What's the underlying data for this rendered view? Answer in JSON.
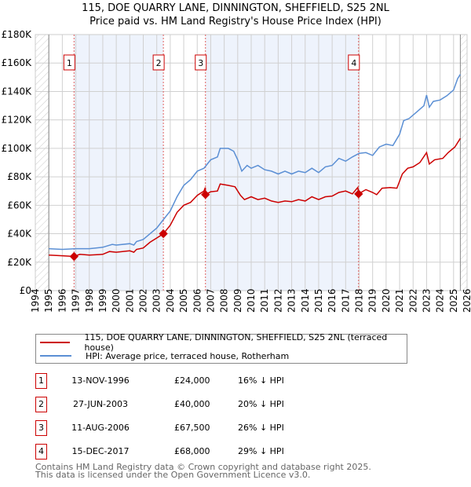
{
  "title": "115, DOE QUARRY LANE, DINNINGTON, SHEFFIELD, S25 2NL",
  "subtitle": "Price paid vs. HM Land Registry's House Price Index (HPI)",
  "colors": {
    "property": "#cc0000",
    "hpi": "#5b8fd4",
    "shade": "#eef3fc",
    "marker_border": "#cc0000"
  },
  "chart_data": {
    "type": "line",
    "title": "115, DOE QUARRY LANE, DINNINGTON, SHEFFIELD, S25 2NL — Price paid vs. HM Land Registry's House Price Index (HPI)",
    "xlim": [
      1994,
      2026
    ],
    "ylim": [
      0,
      180000
    ],
    "x_ticks": [
      "1994",
      "1995",
      "1996",
      "1997",
      "1998",
      "1999",
      "2000",
      "2001",
      "2002",
      "2003",
      "2004",
      "2005",
      "2006",
      "2007",
      "2008",
      "2009",
      "2010",
      "2011",
      "2012",
      "2013",
      "2014",
      "2015",
      "2016",
      "2017",
      "2018",
      "2019",
      "2020",
      "2021",
      "2022",
      "2023",
      "2024",
      "2025",
      "2026"
    ],
    "y_ticks": [
      {
        "v": 0,
        "label": "£0"
      },
      {
        "v": 20000,
        "label": "£20K"
      },
      {
        "v": 40000,
        "label": "£40K"
      },
      {
        "v": 60000,
        "label": "£60K"
      },
      {
        "v": 80000,
        "label": "£80K"
      },
      {
        "v": 100000,
        "label": "£100K"
      },
      {
        "v": 120000,
        "label": "£120K"
      },
      {
        "v": 140000,
        "label": "£140K"
      },
      {
        "v": 160000,
        "label": "£160K"
      },
      {
        "v": 180000,
        "label": "£180K"
      }
    ],
    "grid": true,
    "data_range": [
      1995,
      2025.5
    ],
    "series": [
      {
        "name": "115, DOE QUARRY LANE, DINNINGTON, SHEFFIELD, S25 2NL (terraced house)",
        "color": "#cc0000",
        "x": [
          1995,
          1996,
          1996.87,
          1997.3,
          1998,
          1999,
          1999.5,
          2000,
          2001,
          2001.3,
          2001.5,
          2002,
          2002.5,
          2003,
          2003.49,
          2004,
          2004.5,
          2005,
          2005.5,
          2006,
          2006.5,
          2006.6,
          2006.61,
          2007,
          2007.5,
          2007.7,
          2008.3,
          2008.8,
          2009.2,
          2009.5,
          2010,
          2010.5,
          2011,
          2011.5,
          2012,
          2012.5,
          2013,
          2013.5,
          2014,
          2014.5,
          2015,
          2015.5,
          2016,
          2016.5,
          2017,
          2017.5,
          2017.9,
          2017.96,
          2018.5,
          2019,
          2019.3,
          2019.7,
          2020.3,
          2020.8,
          2021.2,
          2021.6,
          2022,
          2022.5,
          2023,
          2023.2,
          2023.6,
          2024.2,
          2024.6,
          2025.1,
          2025.5
        ],
        "y": [
          25000,
          24500,
          24000,
          25500,
          25000,
          25500,
          27500,
          27000,
          28000,
          27000,
          29000,
          30000,
          34000,
          37000,
          40000,
          46000,
          55000,
          60000,
          62000,
          67000,
          70000,
          72500,
          67500,
          69500,
          70000,
          75000,
          74000,
          73000,
          67000,
          64000,
          66000,
          64000,
          65000,
          63000,
          62000,
          63000,
          62500,
          64000,
          63000,
          66000,
          64000,
          66000,
          66500,
          69000,
          70000,
          68000,
          72500,
          68000,
          71000,
          69000,
          67500,
          72000,
          72500,
          72000,
          82000,
          86000,
          87000,
          90000,
          97000,
          89000,
          92000,
          93000,
          97000,
          101000,
          107000
        ]
      },
      {
        "name": "HPI: Average price, terraced house, Rotherham",
        "color": "#5b8fd4",
        "x": [
          1995,
          1996,
          1997,
          1998,
          1999,
          1999.7,
          2000,
          2001,
          2001.3,
          2001.5,
          2002,
          2002.5,
          2003,
          2003.5,
          2004,
          2004.5,
          2005,
          2005.5,
          2006,
          2006.5,
          2007,
          2007.5,
          2007.7,
          2008.3,
          2008.7,
          2009,
          2009.3,
          2009.7,
          2010,
          2010.5,
          2011,
          2011.5,
          2012,
          2012.5,
          2013,
          2013.5,
          2014,
          2014.5,
          2015,
          2015.5,
          2016,
          2016.5,
          2017,
          2017.5,
          2018,
          2018.5,
          2019,
          2019.5,
          2020,
          2020.5,
          2021,
          2021.3,
          2021.7,
          2022.2,
          2022.8,
          2023,
          2023.2,
          2023.5,
          2024,
          2024.5,
          2025,
          2025.3,
          2025.5
        ],
        "y": [
          29500,
          29000,
          29500,
          29500,
          30500,
          32500,
          32000,
          33000,
          32000,
          34500,
          36000,
          40000,
          44000,
          50000,
          56000,
          66000,
          74000,
          78000,
          84000,
          86000,
          92000,
          94000,
          100000,
          100000,
          98000,
          92000,
          84000,
          88000,
          86000,
          88000,
          85000,
          84000,
          82000,
          84000,
          82000,
          84000,
          83000,
          86000,
          83000,
          87000,
          88000,
          93000,
          91000,
          94000,
          96500,
          97000,
          95000,
          101000,
          103000,
          102000,
          110000,
          119500,
          121000,
          125000,
          130000,
          137500,
          129000,
          133000,
          134000,
          137000,
          141000,
          149000,
          152000
        ]
      }
    ],
    "sales": [
      {
        "n": "1",
        "x": 1996.87,
        "y": 24000,
        "date": "13-NOV-1996",
        "price": "£24,000",
        "delta": "16% ↓ HPI"
      },
      {
        "n": "2",
        "x": 2003.49,
        "y": 40000,
        "date": "27-JUN-2003",
        "price": "£40,000",
        "delta": "20% ↓ HPI"
      },
      {
        "n": "3",
        "x": 2006.61,
        "y": 67500,
        "date": "11-AUG-2006",
        "price": "£67,500",
        "delta": "26% ↓ HPI"
      },
      {
        "n": "4",
        "x": 2017.96,
        "y": 68000,
        "date": "15-DEC-2017",
        "price": "£68,000",
        "delta": "29% ↓ HPI"
      }
    ],
    "legend_position": "below"
  },
  "legend": {
    "property": "115, DOE QUARRY LANE, DINNINGTON, SHEFFIELD, S25 2NL (terraced house)",
    "hpi": "HPI: Average price, terraced house, Rotherham"
  },
  "footer": {
    "line1": "Contains HM Land Registry data © Crown copyright and database right 2025.",
    "line2": "This data is licensed under the Open Government Licence v3.0."
  }
}
